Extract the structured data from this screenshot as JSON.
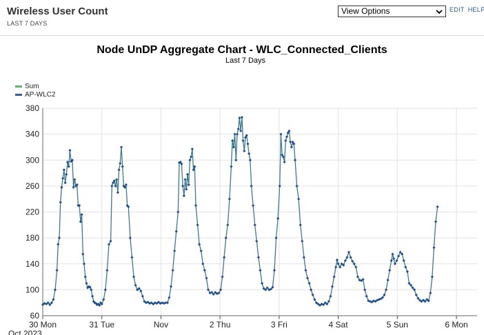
{
  "header": {
    "title": "Wireless User Count",
    "subtitle": "LAST 7 DAYS",
    "view_options": "View Options",
    "edit": "EDIT",
    "help": "HELP"
  },
  "colors": {
    "sum": "#5cb85c",
    "ap": "#2f5e9e",
    "line": "#3a7a8c",
    "marker": "#1f4e8c",
    "grid": "#e2e2e2"
  },
  "chart_data": {
    "type": "line",
    "title": "Node UnDP Aggregate Chart - WLC_Connected_Clients",
    "subtitle": "Last 7 Days",
    "legend": [
      "Sum",
      "AP-WLC2"
    ],
    "ylim": [
      60,
      380
    ],
    "yticks": [
      60,
      100,
      140,
      180,
      220,
      260,
      300,
      340,
      380
    ],
    "xlim": [
      0,
      7.35
    ],
    "xticks": [
      {
        "x": 0,
        "label": "30 Mon"
      },
      {
        "x": 1,
        "label": "31 Tue"
      },
      {
        "x": 2,
        "label": "Nov"
      },
      {
        "x": 3,
        "label": "2 Thu"
      },
      {
        "x": 4,
        "label": "3 Fri"
      },
      {
        "x": 5,
        "label": "4 Sat"
      },
      {
        "x": 6,
        "label": "5 Sun"
      },
      {
        "x": 7,
        "label": "6 Mon"
      }
    ],
    "xsublabel": "Oct 2023",
    "series": [
      {
        "name": "AP-WLC2",
        "points": [
          [
            0.0,
            77
          ],
          [
            0.03,
            79
          ],
          [
            0.06,
            78
          ],
          [
            0.09,
            80
          ],
          [
            0.12,
            77
          ],
          [
            0.15,
            80
          ],
          [
            0.18,
            85
          ],
          [
            0.21,
            100
          ],
          [
            0.24,
            130
          ],
          [
            0.26,
            170
          ],
          [
            0.28,
            180
          ],
          [
            0.3,
            235
          ],
          [
            0.32,
            258
          ],
          [
            0.34,
            272
          ],
          [
            0.36,
            285
          ],
          [
            0.38,
            265
          ],
          [
            0.4,
            278
          ],
          [
            0.42,
            297
          ],
          [
            0.44,
            290
          ],
          [
            0.46,
            315
          ],
          [
            0.48,
            298
          ],
          [
            0.5,
            300
          ],
          [
            0.52,
            258
          ],
          [
            0.54,
            270
          ],
          [
            0.56,
            260
          ],
          [
            0.58,
            262
          ],
          [
            0.6,
            230
          ],
          [
            0.62,
            230
          ],
          [
            0.64,
            205
          ],
          [
            0.66,
            216
          ],
          [
            0.68,
            155
          ],
          [
            0.7,
            140
          ],
          [
            0.72,
            120
          ],
          [
            0.74,
            110
          ],
          [
            0.76,
            103
          ],
          [
            0.78,
            105
          ],
          [
            0.8,
            104
          ],
          [
            0.82,
            100
          ],
          [
            0.84,
            90
          ],
          [
            0.86,
            82
          ],
          [
            0.88,
            80
          ],
          [
            0.9,
            79
          ],
          [
            0.92,
            77
          ],
          [
            0.94,
            78
          ],
          [
            0.96,
            76
          ],
          [
            0.98,
            80
          ],
          [
            1.0,
            78
          ],
          [
            1.03,
            85
          ],
          [
            1.06,
            100
          ],
          [
            1.09,
            130
          ],
          [
            1.12,
            170
          ],
          [
            1.15,
            175
          ],
          [
            1.17,
            260
          ],
          [
            1.19,
            265
          ],
          [
            1.21,
            268
          ],
          [
            1.23,
            260
          ],
          [
            1.25,
            270
          ],
          [
            1.27,
            250
          ],
          [
            1.29,
            285
          ],
          [
            1.31,
            295
          ],
          [
            1.33,
            320
          ],
          [
            1.35,
            290
          ],
          [
            1.37,
            260
          ],
          [
            1.39,
            258
          ],
          [
            1.41,
            262
          ],
          [
            1.43,
            230
          ],
          [
            1.45,
            228
          ],
          [
            1.48,
            180
          ],
          [
            1.51,
            150
          ],
          [
            1.54,
            120
          ],
          [
            1.57,
            107
          ],
          [
            1.6,
            100
          ],
          [
            1.63,
            102
          ],
          [
            1.66,
            98
          ],
          [
            1.69,
            90
          ],
          [
            1.72,
            82
          ],
          [
            1.75,
            80
          ],
          [
            1.78,
            81
          ],
          [
            1.81,
            79
          ],
          [
            1.84,
            80
          ],
          [
            1.87,
            78
          ],
          [
            1.9,
            80
          ],
          [
            1.93,
            79
          ],
          [
            1.96,
            81
          ],
          [
            1.99,
            79
          ],
          [
            2.02,
            80
          ],
          [
            2.05,
            79
          ],
          [
            2.08,
            80
          ],
          [
            2.11,
            80
          ],
          [
            2.14,
            88
          ],
          [
            2.17,
            105
          ],
          [
            2.2,
            130
          ],
          [
            2.23,
            160
          ],
          [
            2.26,
            190
          ],
          [
            2.29,
            220
          ],
          [
            2.31,
            296
          ],
          [
            2.33,
            297
          ],
          [
            2.35,
            294
          ],
          [
            2.37,
            260
          ],
          [
            2.39,
            245
          ],
          [
            2.41,
            270
          ],
          [
            2.43,
            255
          ],
          [
            2.45,
            278
          ],
          [
            2.47,
            262
          ],
          [
            2.49,
            300
          ],
          [
            2.51,
            305
          ],
          [
            2.53,
            317
          ],
          [
            2.55,
            285
          ],
          [
            2.57,
            290
          ],
          [
            2.59,
            230
          ],
          [
            2.62,
            200
          ],
          [
            2.65,
            170
          ],
          [
            2.68,
            160
          ],
          [
            2.71,
            140
          ],
          [
            2.74,
            130
          ],
          [
            2.77,
            118
          ],
          [
            2.8,
            100
          ],
          [
            2.83,
            95
          ],
          [
            2.86,
            96
          ],
          [
            2.89,
            93
          ],
          [
            2.92,
            96
          ],
          [
            2.95,
            94
          ],
          [
            2.98,
            95
          ],
          [
            3.01,
            100
          ],
          [
            3.04,
            120
          ],
          [
            3.07,
            150
          ],
          [
            3.1,
            180
          ],
          [
            3.13,
            200
          ],
          [
            3.16,
            240
          ],
          [
            3.19,
            290
          ],
          [
            3.21,
            330
          ],
          [
            3.23,
            320
          ],
          [
            3.25,
            340
          ],
          [
            3.27,
            300
          ],
          [
            3.29,
            340
          ],
          [
            3.31,
            348
          ],
          [
            3.33,
            365
          ],
          [
            3.35,
            345
          ],
          [
            3.37,
            366
          ],
          [
            3.39,
            330
          ],
          [
            3.41,
            314
          ],
          [
            3.43,
            335
          ],
          [
            3.45,
            338
          ],
          [
            3.47,
            325
          ],
          [
            3.49,
            310
          ],
          [
            3.51,
            300
          ],
          [
            3.53,
            260
          ],
          [
            3.56,
            230
          ],
          [
            3.59,
            200
          ],
          [
            3.62,
            175
          ],
          [
            3.65,
            150
          ],
          [
            3.68,
            130
          ],
          [
            3.71,
            110
          ],
          [
            3.74,
            102
          ],
          [
            3.77,
            100
          ],
          [
            3.8,
            103
          ],
          [
            3.83,
            100
          ],
          [
            3.86,
            101
          ],
          [
            3.89,
            104
          ],
          [
            3.92,
            130
          ],
          [
            3.95,
            180
          ],
          [
            3.98,
            210
          ],
          [
            4.01,
            260
          ],
          [
            4.03,
            340
          ],
          [
            4.05,
            308
          ],
          [
            4.07,
            305
          ],
          [
            4.09,
            297
          ],
          [
            4.11,
            330
          ],
          [
            4.13,
            336
          ],
          [
            4.15,
            342
          ],
          [
            4.17,
            345
          ],
          [
            4.19,
            328
          ],
          [
            4.21,
            320
          ],
          [
            4.23,
            328
          ],
          [
            4.25,
            325
          ],
          [
            4.27,
            300
          ],
          [
            4.3,
            260
          ],
          [
            4.33,
            240
          ],
          [
            4.36,
            200
          ],
          [
            4.39,
            175
          ],
          [
            4.42,
            150
          ],
          [
            4.45,
            130
          ],
          [
            4.48,
            118
          ],
          [
            4.51,
            110
          ],
          [
            4.54,
            100
          ],
          [
            4.57,
            92
          ],
          [
            4.6,
            85
          ],
          [
            4.63,
            80
          ],
          [
            4.66,
            78
          ],
          [
            4.69,
            76
          ],
          [
            4.72,
            78
          ],
          [
            4.75,
            77
          ],
          [
            4.78,
            80
          ],
          [
            4.81,
            78
          ],
          [
            4.84,
            82
          ],
          [
            4.87,
            90
          ],
          [
            4.9,
            105
          ],
          [
            4.93,
            120
          ],
          [
            4.96,
            135
          ],
          [
            4.98,
            146
          ],
          [
            5.0,
            140
          ],
          [
            5.03,
            135
          ],
          [
            5.06,
            140
          ],
          [
            5.09,
            138
          ],
          [
            5.12,
            145
          ],
          [
            5.15,
            150
          ],
          [
            5.18,
            158
          ],
          [
            5.21,
            150
          ],
          [
            5.24,
            144
          ],
          [
            5.27,
            140
          ],
          [
            5.3,
            135
          ],
          [
            5.33,
            120
          ],
          [
            5.36,
            115
          ],
          [
            5.39,
            114
          ],
          [
            5.42,
            116
          ],
          [
            5.45,
            100
          ],
          [
            5.48,
            90
          ],
          [
            5.51,
            83
          ],
          [
            5.54,
            82
          ],
          [
            5.57,
            81
          ],
          [
            5.6,
            83
          ],
          [
            5.63,
            82
          ],
          [
            5.66,
            84
          ],
          [
            5.69,
            85
          ],
          [
            5.72,
            86
          ],
          [
            5.75,
            88
          ],
          [
            5.78,
            92
          ],
          [
            5.81,
            100
          ],
          [
            5.84,
            115
          ],
          [
            5.87,
            130
          ],
          [
            5.9,
            145
          ],
          [
            5.92,
            155
          ],
          [
            5.94,
            148
          ],
          [
            5.96,
            140
          ],
          [
            5.99,
            145
          ],
          [
            6.02,
            152
          ],
          [
            6.05,
            158
          ],
          [
            6.08,
            155
          ],
          [
            6.11,
            145
          ],
          [
            6.14,
            135
          ],
          [
            6.17,
            128
          ],
          [
            6.2,
            110
          ],
          [
            6.23,
            107
          ],
          [
            6.26,
            103
          ],
          [
            6.29,
            100
          ],
          [
            6.32,
            92
          ],
          [
            6.35,
            87
          ],
          [
            6.38,
            84
          ],
          [
            6.41,
            82
          ],
          [
            6.44,
            84
          ],
          [
            6.47,
            82
          ],
          [
            6.5,
            85
          ],
          [
            6.53,
            83
          ],
          [
            6.56,
            95
          ],
          [
            6.59,
            120
          ],
          [
            6.62,
            165
          ],
          [
            6.65,
            205
          ],
          [
            6.68,
            228
          ]
        ]
      }
    ]
  }
}
